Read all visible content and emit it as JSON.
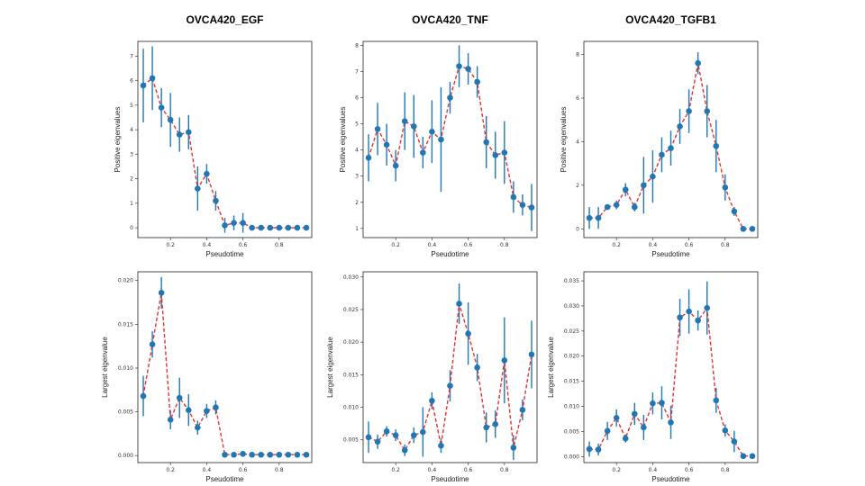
{
  "chart_data": [
    {
      "type": "scatter",
      "title": "OVCA420_EGF",
      "xlabel": "Pseudotime",
      "ylabel": "Positive eigenvalues",
      "xlim": [
        0.02,
        0.98
      ],
      "ylim": [
        -0.4,
        7.6
      ],
      "xticks": [
        0.2,
        0.4,
        0.6,
        0.8
      ],
      "yticks": [
        0,
        1,
        2,
        3,
        4,
        5,
        6,
        7
      ],
      "x": [
        0.05,
        0.1,
        0.15,
        0.2,
        0.25,
        0.3,
        0.35,
        0.4,
        0.45,
        0.5,
        0.55,
        0.6,
        0.65,
        0.7,
        0.75,
        0.8,
        0.85,
        0.9,
        0.95
      ],
      "y": [
        5.8,
        6.1,
        4.9,
        4.4,
        3.8,
        3.9,
        1.6,
        2.2,
        1.1,
        0.1,
        0.2,
        0.2,
        0.0,
        0.0,
        0.0,
        0.0,
        0.0,
        0.0,
        0.0
      ],
      "err": [
        1.5,
        1.3,
        0.8,
        1.1,
        0.7,
        0.7,
        0.9,
        0.4,
        0.4,
        0.3,
        0.3,
        0.4,
        0.05,
        0.05,
        0.05,
        0.05,
        0.05,
        0.05,
        0.05
      ],
      "marker_color": "#1f77b4",
      "line_color": "#e8302e",
      "line_style": "dashed",
      "grid": false
    },
    {
      "type": "scatter",
      "title": "OVCA420_TNF",
      "xlabel": "Pseudotime",
      "ylabel": "Positive eigenvalues",
      "xlim": [
        0.02,
        0.98
      ],
      "ylim": [
        0.65,
        8.15
      ],
      "xticks": [
        0.2,
        0.4,
        0.6,
        0.8
      ],
      "yticks": [
        1,
        2,
        3,
        4,
        5,
        6,
        7,
        8
      ],
      "x": [
        0.05,
        0.1,
        0.15,
        0.2,
        0.25,
        0.3,
        0.35,
        0.4,
        0.45,
        0.5,
        0.55,
        0.6,
        0.65,
        0.7,
        0.75,
        0.8,
        0.85,
        0.9,
        0.95
      ],
      "y": [
        3.7,
        4.8,
        4.2,
        3.4,
        5.1,
        4.9,
        3.9,
        4.7,
        4.4,
        6.0,
        7.2,
        7.1,
        6.6,
        4.3,
        3.8,
        3.9,
        2.2,
        1.9,
        1.8
      ],
      "err": [
        0.9,
        1.0,
        0.8,
        0.6,
        1.1,
        1.2,
        0.6,
        1.2,
        2.0,
        0.6,
        0.8,
        0.6,
        0.6,
        1.0,
        0.9,
        1.2,
        0.6,
        0.4,
        0.9
      ],
      "marker_color": "#1f77b4",
      "line_color": "#e8302e",
      "line_style": "dashed",
      "grid": false
    },
    {
      "type": "scatter",
      "title": "OVCA420_TGFB1",
      "xlabel": "Pseudotime",
      "ylabel": "Positive eigenvalues",
      "xlim": [
        0.02,
        0.98
      ],
      "ylim": [
        -0.4,
        8.6
      ],
      "xticks": [
        0.2,
        0.4,
        0.6,
        0.8
      ],
      "yticks": [
        0,
        2,
        4,
        6,
        8
      ],
      "x": [
        0.05,
        0.1,
        0.15,
        0.2,
        0.25,
        0.3,
        0.35,
        0.4,
        0.45,
        0.5,
        0.55,
        0.6,
        0.65,
        0.7,
        0.75,
        0.8,
        0.85,
        0.9,
        0.95
      ],
      "y": [
        0.5,
        0.5,
        1.0,
        1.1,
        1.8,
        1.0,
        2.0,
        2.4,
        3.4,
        3.7,
        4.7,
        5.4,
        7.6,
        5.4,
        3.8,
        1.9,
        0.8,
        0.0,
        0.0
      ],
      "err": [
        0.5,
        0.5,
        0.1,
        0.2,
        0.3,
        0.2,
        1.3,
        1.2,
        0.8,
        0.8,
        0.8,
        1.0,
        0.5,
        1.2,
        1.2,
        0.6,
        0.2,
        0.05,
        0.05
      ],
      "marker_color": "#1f77b4",
      "line_color": "#e8302e",
      "line_style": "dashed",
      "grid": false
    },
    {
      "type": "scatter",
      "title": "",
      "xlabel": "Pseudotime",
      "ylabel": "Largest eigenvalue",
      "xlim": [
        0.02,
        0.98
      ],
      "ylim": [
        -0.0008,
        0.021
      ],
      "xticks": [
        0.2,
        0.4,
        0.6,
        0.8
      ],
      "yticks": [
        0.0,
        0.005,
        0.01,
        0.015,
        0.02
      ],
      "ytick_labels": [
        "0.000",
        "0.005",
        "0.010",
        "0.015",
        "0.020"
      ],
      "x": [
        0.05,
        0.1,
        0.15,
        0.2,
        0.25,
        0.3,
        0.35,
        0.4,
        0.45,
        0.5,
        0.55,
        0.6,
        0.65,
        0.7,
        0.75,
        0.8,
        0.85,
        0.9,
        0.95
      ],
      "y": [
        0.0068,
        0.0127,
        0.0186,
        0.0041,
        0.0066,
        0.0052,
        0.0032,
        0.0051,
        0.0055,
        0.0001,
        0.0001,
        0.0002,
        0.0001,
        0.0001,
        0.0001,
        0.0001,
        0.0001,
        0.0001,
        0.0001
      ],
      "err": [
        0.0023,
        0.0015,
        0.0018,
        0.0011,
        0.0023,
        0.0018,
        0.0008,
        0.0008,
        0.0008,
        0.0002,
        0.0002,
        0.0002,
        0.0001,
        0.0001,
        0.0001,
        0.0001,
        0.0001,
        0.0001,
        0.0001
      ],
      "marker_color": "#1f77b4",
      "line_color": "#e8302e",
      "line_style": "dashed",
      "grid": false
    },
    {
      "type": "scatter",
      "title": "",
      "xlabel": "Pseudotime",
      "ylabel": "Largest eigenvalue",
      "xlim": [
        0.02,
        0.98
      ],
      "ylim": [
        0.0015,
        0.0308
      ],
      "xticks": [
        0.2,
        0.4,
        0.6,
        0.8
      ],
      "yticks": [
        0.005,
        0.01,
        0.015,
        0.02,
        0.025,
        0.03
      ],
      "ytick_labels": [
        "0.005",
        "0.010",
        "0.015",
        "0.020",
        "0.025",
        "0.030"
      ],
      "x": [
        0.05,
        0.1,
        0.15,
        0.2,
        0.25,
        0.3,
        0.35,
        0.4,
        0.45,
        0.5,
        0.55,
        0.6,
        0.65,
        0.7,
        0.75,
        0.8,
        0.85,
        0.9,
        0.95
      ],
      "y": [
        0.0054,
        0.0047,
        0.0063,
        0.0057,
        0.0034,
        0.0057,
        0.0062,
        0.011,
        0.0041,
        0.0133,
        0.0259,
        0.0213,
        0.0161,
        0.0069,
        0.0074,
        0.0172,
        0.0038,
        0.0096,
        0.0181
      ],
      "err": [
        0.0024,
        0.0011,
        0.0008,
        0.0009,
        0.0009,
        0.0012,
        0.0038,
        0.0013,
        0.0011,
        0.0024,
        0.0031,
        0.0048,
        0.0021,
        0.0023,
        0.0021,
        0.0066,
        0.0019,
        0.0016,
        0.0052
      ],
      "marker_color": "#1f77b4",
      "line_color": "#e8302e",
      "line_style": "dashed",
      "grid": false
    },
    {
      "type": "scatter",
      "title": "",
      "xlabel": "Pseudotime",
      "ylabel": "Largest eigenvalue",
      "xlim": [
        0.02,
        0.98
      ],
      "ylim": [
        -0.0012,
        0.0368
      ],
      "xticks": [
        0.2,
        0.4,
        0.6,
        0.8
      ],
      "yticks": [
        0.0,
        0.005,
        0.01,
        0.015,
        0.02,
        0.025,
        0.03,
        0.035
      ],
      "ytick_labels": [
        "0.000",
        "0.005",
        "0.010",
        "0.015",
        "0.020",
        "0.025",
        "0.030",
        "0.035"
      ],
      "x": [
        0.05,
        0.1,
        0.15,
        0.2,
        0.25,
        0.3,
        0.35,
        0.4,
        0.45,
        0.5,
        0.55,
        0.6,
        0.65,
        0.7,
        0.75,
        0.8,
        0.85,
        0.9,
        0.95
      ],
      "y": [
        0.0015,
        0.0014,
        0.0051,
        0.0077,
        0.0036,
        0.0085,
        0.0058,
        0.0106,
        0.0107,
        0.0068,
        0.0277,
        0.0289,
        0.0271,
        0.0296,
        0.0112,
        0.0052,
        0.003,
        0.0001,
        0.0001
      ],
      "err": [
        0.0015,
        0.0012,
        0.0018,
        0.0017,
        0.0008,
        0.0022,
        0.0025,
        0.0022,
        0.0033,
        0.0033,
        0.0037,
        0.0044,
        0.002,
        0.0053,
        0.0025,
        0.0012,
        0.0021,
        0.0002,
        0.0002
      ],
      "marker_color": "#1f77b4",
      "line_color": "#e8302e",
      "line_style": "dashed",
      "grid": false
    }
  ]
}
